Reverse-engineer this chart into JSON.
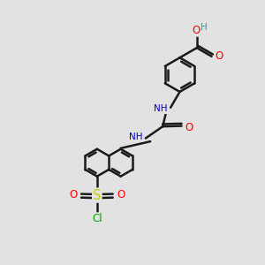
{
  "background_color": "#e2e2e2",
  "bond_color": "#1a1a1a",
  "bond_width": 1.8,
  "atom_colors": {
    "O": "#ff0000",
    "N": "#0000cd",
    "S": "#cccc00",
    "Cl": "#00aa00",
    "H": "#4a9090",
    "C": "#1a1a1a"
  },
  "font_size": 7.5,
  "fig_size": [
    3.0,
    3.0
  ],
  "dpi": 100
}
